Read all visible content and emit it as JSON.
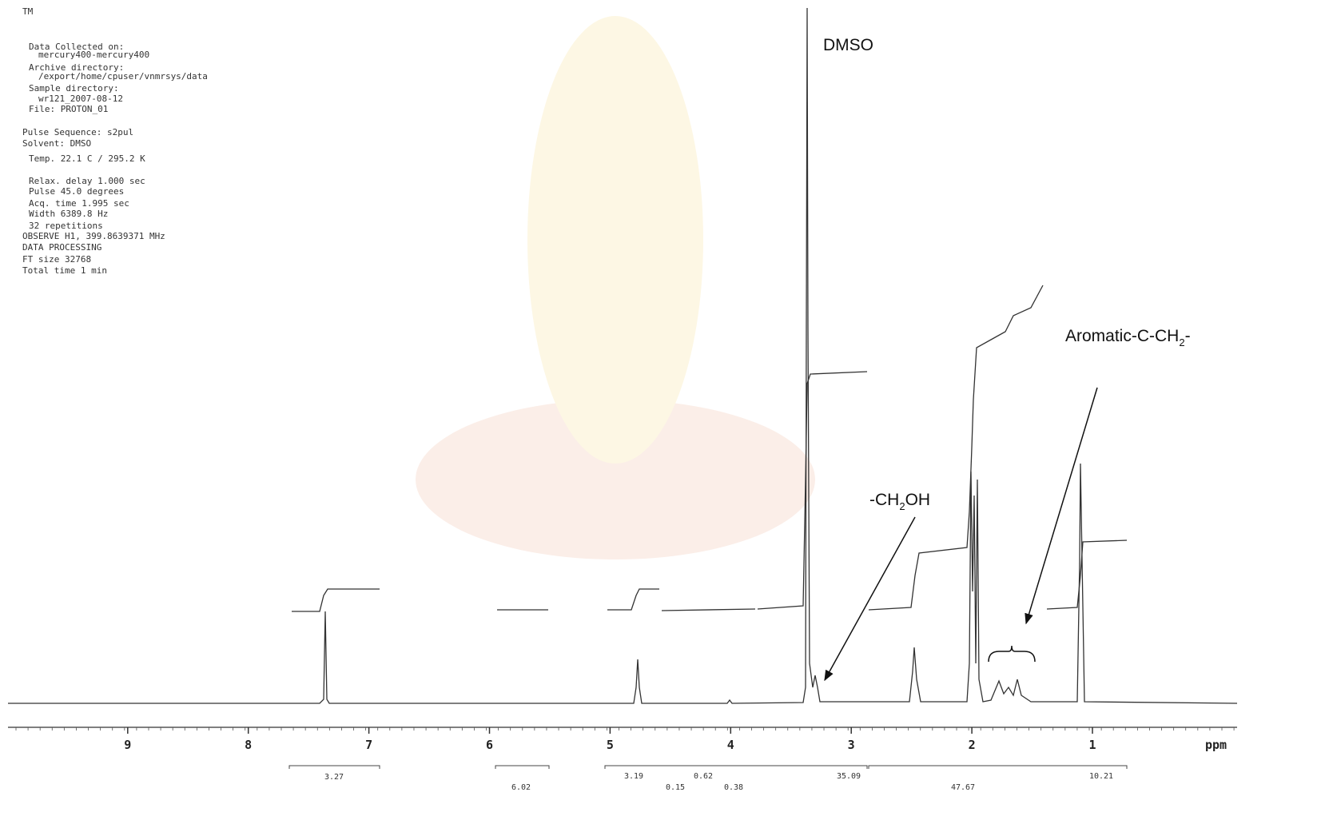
{
  "header": {
    "lines": [
      "TM",
      "Data Collected on:",
      "mercury400-mercury400",
      "Archive directory:",
      "/export/home/cpuser/vnmrsys/data",
      "Sample directory:",
      "wr121_2007-08-12",
      "File: PROTON_01",
      "Pulse Sequence: s2pul",
      "Solvent: DMSO",
      "Temp. 22.1 C / 295.2 K",
      "Relax. delay 1.000 sec",
      "Pulse 45.0 degrees",
      "Acq. time 1.995 sec",
      "Width 6389.8 Hz",
      "32 repetitions",
      "OBSERVE   H1, 399.8639371 MHz",
      "DATA PROCESSING",
      "FT size 32768",
      "Total time 1 min"
    ]
  },
  "axis": {
    "ticks": [
      9,
      8,
      7,
      6,
      5,
      4,
      3,
      2,
      1
    ],
    "unit": "ppm"
  },
  "annotations": {
    "dmso": "DMSO",
    "ch2oh": [
      "-CH",
      "2",
      "OH"
    ],
    "aromatic": [
      "Aromatic-C-CH",
      "2",
      "-"
    ]
  },
  "integrals": [
    "3.27",
    "6.02",
    "3.19",
    "0.62",
    "0.15",
    "0.38",
    "35.09",
    "47.67",
    "10.21"
  ]
}
